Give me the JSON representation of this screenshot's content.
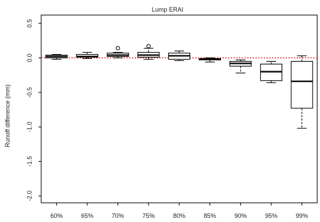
{
  "chart_data": {
    "type": "boxplot",
    "title": "Lump ERAI",
    "xlabel": "",
    "ylabel": "Runoff difference (mm)",
    "ylim": [
      -2.1,
      0.62
    ],
    "yticks": [
      0.5,
      0.0,
      -0.5,
      -1.0,
      -1.5,
      -2.0
    ],
    "ytick_labels": [
      "0.5",
      "0.0",
      "-0.5",
      "-1.0",
      "-1.5",
      "-2.0"
    ],
    "reference_line": {
      "y": 0.0,
      "style": "dotted",
      "color": "#e03030"
    },
    "categories": [
      "60%",
      "65%",
      "70%",
      "75%",
      "80%",
      "85%",
      "90%",
      "95%",
      "99%"
    ],
    "boxes": [
      {
        "whisker_low": -0.02,
        "q1": 0.0,
        "median": 0.02,
        "q3": 0.04,
        "whisker_high": 0.05,
        "outliers": []
      },
      {
        "whisker_low": -0.01,
        "q1": 0.01,
        "median": 0.02,
        "q3": 0.05,
        "whisker_high": 0.08,
        "outliers": []
      },
      {
        "whisker_low": 0.0,
        "q1": 0.02,
        "median": 0.04,
        "q3": 0.07,
        "whisker_high": 0.08,
        "outliers": [
          0.14
        ]
      },
      {
        "whisker_low": -0.02,
        "q1": 0.01,
        "median": 0.04,
        "q3": 0.08,
        "whisker_high": 0.14,
        "outliers": [
          0.17
        ]
      },
      {
        "whisker_low": -0.04,
        "q1": -0.02,
        "median": 0.03,
        "q3": 0.07,
        "whisker_high": 0.1,
        "outliers": []
      },
      {
        "whisker_low": -0.06,
        "q1": -0.03,
        "median": -0.02,
        "q3": -0.01,
        "whisker_high": 0.0,
        "outliers": []
      },
      {
        "whisker_low": -0.22,
        "q1": -0.12,
        "median": -0.08,
        "q3": -0.05,
        "whisker_high": -0.03,
        "outliers": []
      },
      {
        "whisker_low": -0.36,
        "q1": -0.33,
        "median": -0.2,
        "q3": -0.09,
        "whisker_high": -0.05,
        "outliers": []
      },
      {
        "whisker_low": -1.02,
        "q1": -0.73,
        "median": -0.34,
        "q3": -0.05,
        "whisker_high": 0.03,
        "outliers": []
      }
    ],
    "grid": false,
    "colors": {
      "box_fill": "#ffffff",
      "box_stroke": "#000000",
      "axis": "#000000"
    }
  }
}
